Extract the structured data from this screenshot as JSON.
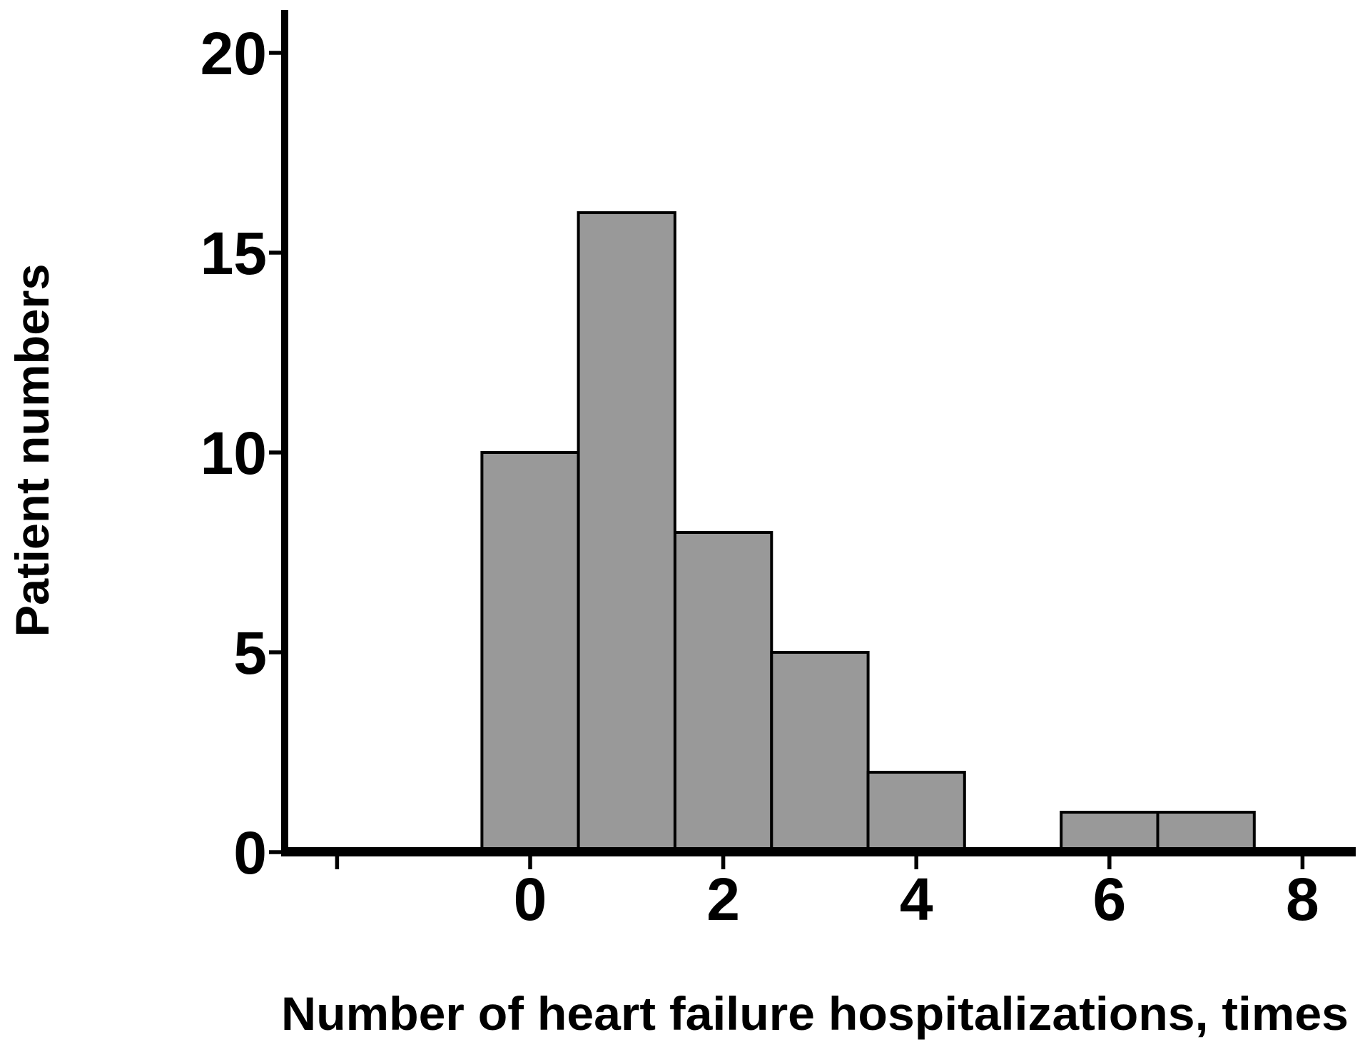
{
  "figure": {
    "background": "#ffffff"
  },
  "chart_data": {
    "type": "bar",
    "subtype": "histogram",
    "title": "",
    "xlabel": "Number of heart failure hospitalizations, times",
    "ylabel": "Patient numbers",
    "x": [
      0,
      1,
      2,
      3,
      4,
      5,
      6,
      7
    ],
    "values": [
      10,
      16,
      8,
      5,
      2,
      0,
      1,
      1
    ],
    "bar_width": 1,
    "xlim": [
      -2.6,
      8.6
    ],
    "ylim": [
      0,
      21
    ],
    "xticks_labeled": [
      0,
      2,
      4,
      6,
      8
    ],
    "xticks_unlabeled": [
      -2
    ],
    "yticks": [
      0,
      5,
      10,
      15,
      20
    ],
    "grid": false,
    "legend": null,
    "colors": {
      "bar_fill": "#999999",
      "bar_edge": "#000000",
      "axis": "#000000",
      "text": "#000000"
    }
  }
}
